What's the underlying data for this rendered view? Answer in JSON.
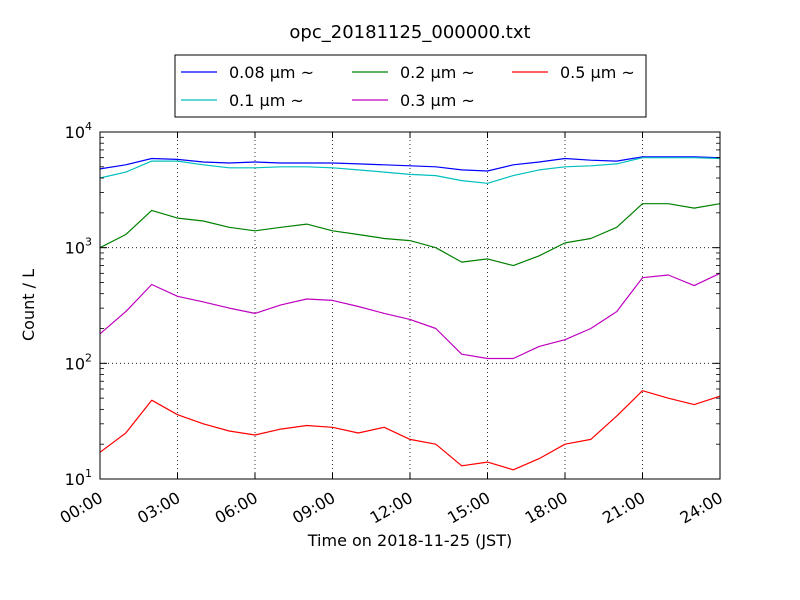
{
  "chart_data": {
    "type": "line",
    "title": "opc_20181125_000000.txt",
    "xlabel": "Time on 2018-11-25 (JST)",
    "ylabel": "Count / L",
    "yscale": "log",
    "ylim": [
      10,
      10000
    ],
    "xlim": [
      "00:00",
      "24:00"
    ],
    "grid": true,
    "legend_position": "top-center, outside plot area",
    "x_ticks": [
      "00:00",
      "03:00",
      "06:00",
      "09:00",
      "12:00",
      "15:00",
      "18:00",
      "21:00",
      "24:00"
    ],
    "y_ticks": [
      {
        "value": 10,
        "base": "10",
        "exp": "1"
      },
      {
        "value": 100,
        "base": "10",
        "exp": "2"
      },
      {
        "value": 1000,
        "base": "10",
        "exp": "3"
      },
      {
        "value": 10000,
        "base": "10",
        "exp": "4"
      }
    ],
    "x": [
      "00:00",
      "01:00",
      "02:00",
      "03:00",
      "04:00",
      "05:00",
      "06:00",
      "07:00",
      "08:00",
      "09:00",
      "10:00",
      "11:00",
      "12:00",
      "13:00",
      "14:00",
      "15:00",
      "16:00",
      "17:00",
      "18:00",
      "19:00",
      "20:00",
      "21:00",
      "22:00",
      "23:00",
      "24:00"
    ],
    "series": [
      {
        "name": "0.08 μm ~",
        "color": "#0000ff",
        "values": [
          4800,
          5200,
          5900,
          5800,
          5500,
          5400,
          5500,
          5400,
          5400,
          5400,
          5300,
          5200,
          5100,
          5000,
          4700,
          4600,
          5200,
          5500,
          5900,
          5700,
          5600,
          6100,
          6100,
          6100,
          6000
        ]
      },
      {
        "name": "0.1 μm ~",
        "color": "#00bfbf",
        "values": [
          4000,
          4500,
          5600,
          5600,
          5200,
          4900,
          4900,
          5000,
          5000,
          4900,
          4700,
          4500,
          4300,
          4200,
          3800,
          3600,
          4200,
          4700,
          5000,
          5100,
          5300,
          6000,
          6000,
          6000,
          5900
        ]
      },
      {
        "name": "0.2 μm ~",
        "color": "#008000",
        "values": [
          1000,
          1300,
          2100,
          1800,
          1700,
          1500,
          1400,
          1500,
          1600,
          1400,
          1300,
          1200,
          1150,
          1000,
          750,
          800,
          700,
          850,
          1100,
          1200,
          1500,
          2400,
          2400,
          2200,
          2400
        ]
      },
      {
        "name": "0.3 μm ~",
        "color": "#bf00bf",
        "values": [
          180,
          280,
          480,
          380,
          340,
          300,
          270,
          320,
          360,
          350,
          310,
          270,
          240,
          200,
          120,
          110,
          110,
          140,
          160,
          200,
          280,
          550,
          580,
          470,
          600
        ]
      },
      {
        "name": "0.5 μm ~",
        "color": "#ff0000",
        "values": [
          17,
          25,
          48,
          36,
          30,
          26,
          24,
          27,
          29,
          28,
          25,
          28,
          22,
          20,
          13,
          14,
          12,
          15,
          20,
          22,
          35,
          58,
          50,
          44,
          52
        ]
      }
    ]
  }
}
